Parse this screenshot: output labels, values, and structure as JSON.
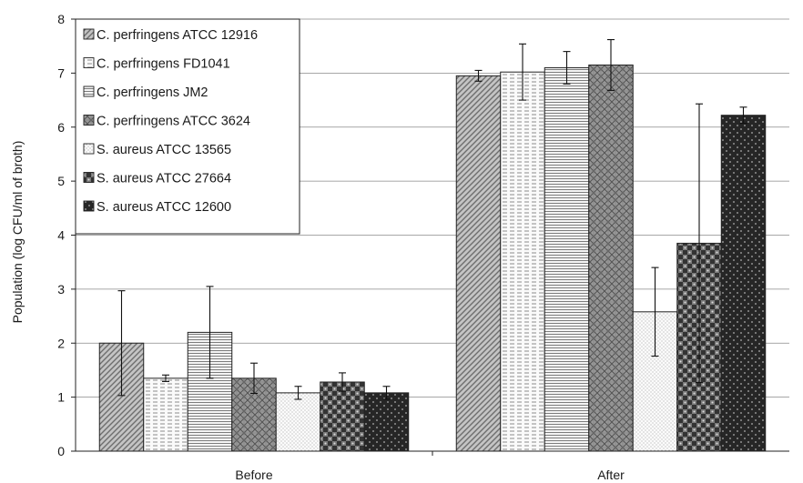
{
  "chart_data": {
    "type": "bar",
    "title": "",
    "xlabel": "",
    "ylabel": "Population (log CFU/ml of broth)",
    "ylim": [
      0,
      8
    ],
    "yticks": [
      0,
      1,
      2,
      3,
      4,
      5,
      6,
      7,
      8
    ],
    "grid": true,
    "legend_position": "top-left",
    "categories": [
      "Before",
      "After"
    ],
    "series": [
      {
        "name": "C. perfringens ATCC 12916",
        "values": [
          2.0,
          6.95
        ],
        "errors": [
          0.97,
          0.1
        ],
        "pattern": "diag-dense",
        "color": "#bdbdbd"
      },
      {
        "name": "C. perfringens FD1041",
        "values": [
          1.35,
          7.02
        ],
        "errors": [
          0.06,
          0.52
        ],
        "pattern": "hlines-dashed",
        "color": "#f2f2f2"
      },
      {
        "name": "C. perfringens JM2",
        "values": [
          2.2,
          7.1
        ],
        "errors": [
          0.85,
          0.3
        ],
        "pattern": "hlines",
        "color": "#e8e8e8"
      },
      {
        "name": "C. perfringens ATCC 3624",
        "values": [
          1.35,
          7.15
        ],
        "errors": [
          0.28,
          0.47
        ],
        "pattern": "grid-diag",
        "color": "#8c8c8c"
      },
      {
        "name": "S. aureus ATCC 13565",
        "values": [
          1.08,
          2.58
        ],
        "errors": [
          0.12,
          0.82
        ],
        "pattern": "dots-light",
        "color": "#f4f4f4"
      },
      {
        "name": "S. aureus ATCC 27664",
        "values": [
          1.28,
          3.85
        ],
        "errors": [
          0.17,
          2.58
        ],
        "pattern": "checker",
        "color": "#5a5a5a"
      },
      {
        "name": "S. aureus ATCC 12600",
        "values": [
          1.08,
          6.22
        ],
        "errors": [
          0.12,
          0.15
        ],
        "pattern": "dark-dots",
        "color": "#2e2e2e"
      }
    ]
  }
}
